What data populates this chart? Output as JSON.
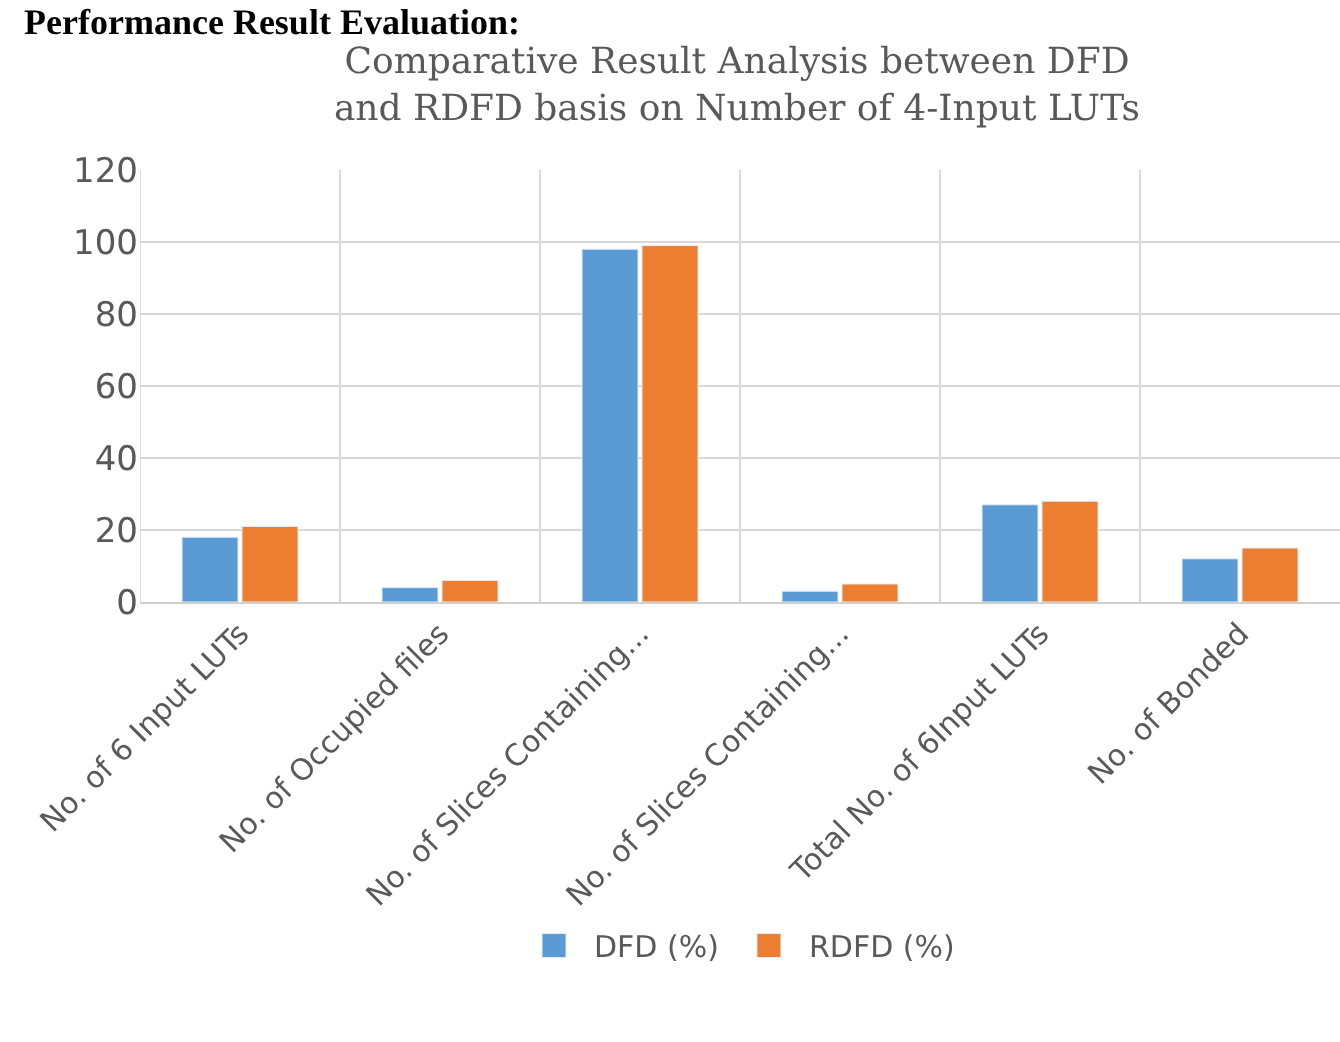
{
  "chart_data": {
    "type": "bar",
    "title": "Comparative Result Analysis between DFD and RDFD basis on Number of 4-Input LUTs",
    "categories": [
      "No. of 6 Input LUTs",
      "No. of Occupied files",
      "No. of Slices Containing...",
      "No. of Slices Containing...",
      "Total No. of 6Input LUTs",
      "No. of Bonded"
    ],
    "series": [
      {
        "name": "DFD (%)",
        "color": "#5b9bd5",
        "values": [
          18,
          4,
          98,
          3,
          27,
          12
        ]
      },
      {
        "name": "RDFD (%)",
        "color": "#ed7d31",
        "values": [
          21,
          6,
          99,
          5,
          28,
          15
        ]
      }
    ],
    "ylim": [
      0,
      120
    ],
    "yticks": [
      0,
      20,
      40,
      60,
      80,
      100,
      120
    ],
    "grid": true,
    "legend": "bottom",
    "annotations": [
      "Performance Result Evaluation:"
    ]
  }
}
